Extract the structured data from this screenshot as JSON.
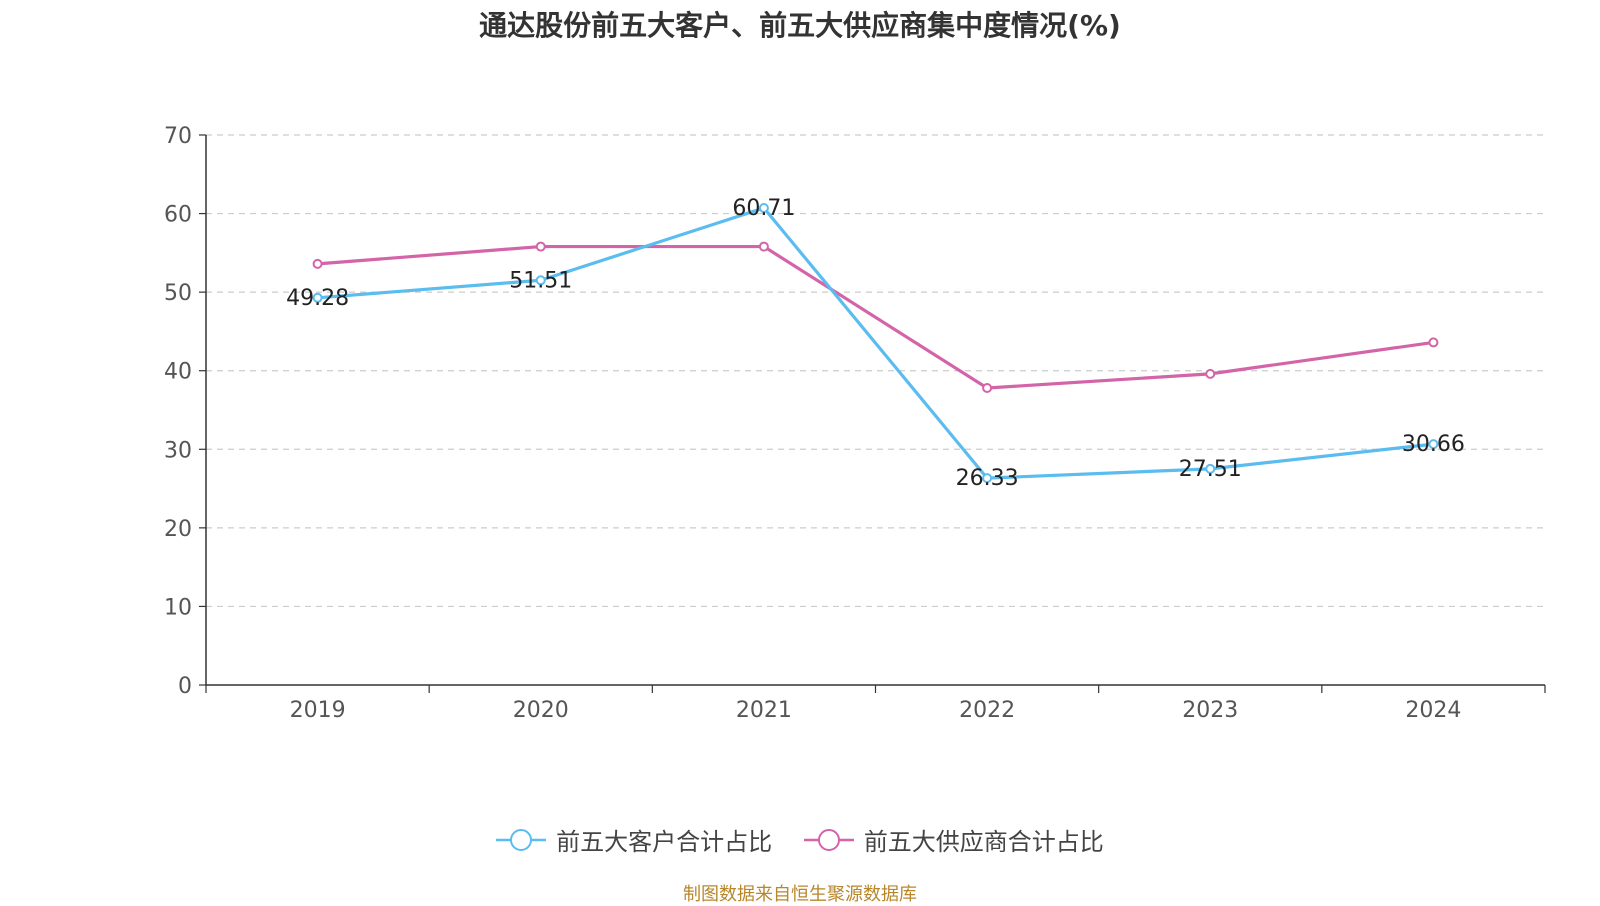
{
  "chart_data": {
    "type": "line",
    "title": "通达股份前五大客户、前五大供应商集中度情况(%)",
    "categories": [
      "2019",
      "2020",
      "2021",
      "2022",
      "2023",
      "2024"
    ],
    "ylim": [
      0,
      70
    ],
    "yticks": [
      0,
      10,
      20,
      30,
      40,
      50,
      60,
      70
    ],
    "grid": true,
    "legend_position": "bottom",
    "series": [
      {
        "name": "前五大客户合计占比",
        "color": "#5bbcf0",
        "values": [
          49.28,
          51.51,
          60.71,
          26.33,
          27.51,
          30.66
        ],
        "labels": [
          "49.28",
          "51.51",
          "60.71",
          "26.33",
          "27.51",
          "30.66"
        ]
      },
      {
        "name": "前五大供应商合计占比",
        "color": "#d464a8",
        "values": [
          53.6,
          55.8,
          55.8,
          37.8,
          39.6,
          43.6
        ],
        "labels": null
      }
    ]
  },
  "source": "制图数据来自恒生聚源数据库"
}
